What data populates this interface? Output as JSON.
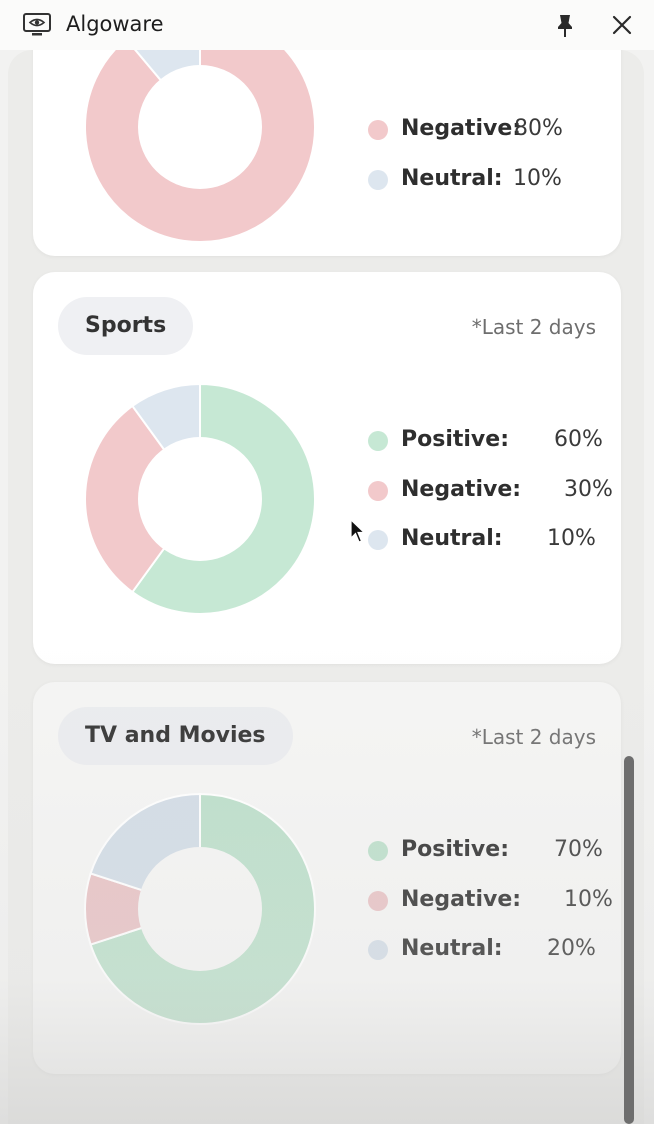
{
  "window": {
    "title": "Algoware",
    "icons": {
      "app": "monitor-eye-icon",
      "pin": "pin-icon",
      "close": "close-icon"
    }
  },
  "colors": {
    "positive": "#c6e8d4",
    "negative": "#f2c9cb",
    "neutral": "#dde6ef",
    "positive_dim": "#bcdfca",
    "negative_dim": "#e8c2c4",
    "neutral_dim": "#d2dce6"
  },
  "cards": [
    {
      "topic": "",
      "period": "",
      "legend": [
        {
          "label": "Negative:",
          "value": "80%"
        },
        {
          "label": "Neutral:",
          "value": "10%"
        }
      ]
    },
    {
      "topic": "Sports",
      "period": "*Last 2 days",
      "legend": [
        {
          "label": "Positive:",
          "value": "60%"
        },
        {
          "label": "Negative:",
          "value": "30%"
        },
        {
          "label": "Neutral:",
          "value": "10%"
        }
      ]
    },
    {
      "topic": "TV and Movies",
      "period": "*Last 2 days",
      "legend": [
        {
          "label": "Positive:",
          "value": "70%"
        },
        {
          "label": "Negative:",
          "value": "10%"
        },
        {
          "label": "Neutral:",
          "value": "20%"
        }
      ]
    }
  ],
  "chart_data": [
    {
      "type": "pie",
      "categories": [
        "Negative",
        "Neutral"
      ],
      "values": [
        80,
        10
      ],
      "note_visible_portion": "partially scrolled out of view"
    },
    {
      "type": "pie",
      "title": "Sports",
      "categories": [
        "Positive",
        "Negative",
        "Neutral"
      ],
      "values": [
        60,
        30,
        10
      ]
    },
    {
      "type": "pie",
      "title": "TV and Movies",
      "categories": [
        "Positive",
        "Negative",
        "Neutral"
      ],
      "values": [
        70,
        10,
        20
      ]
    }
  ]
}
